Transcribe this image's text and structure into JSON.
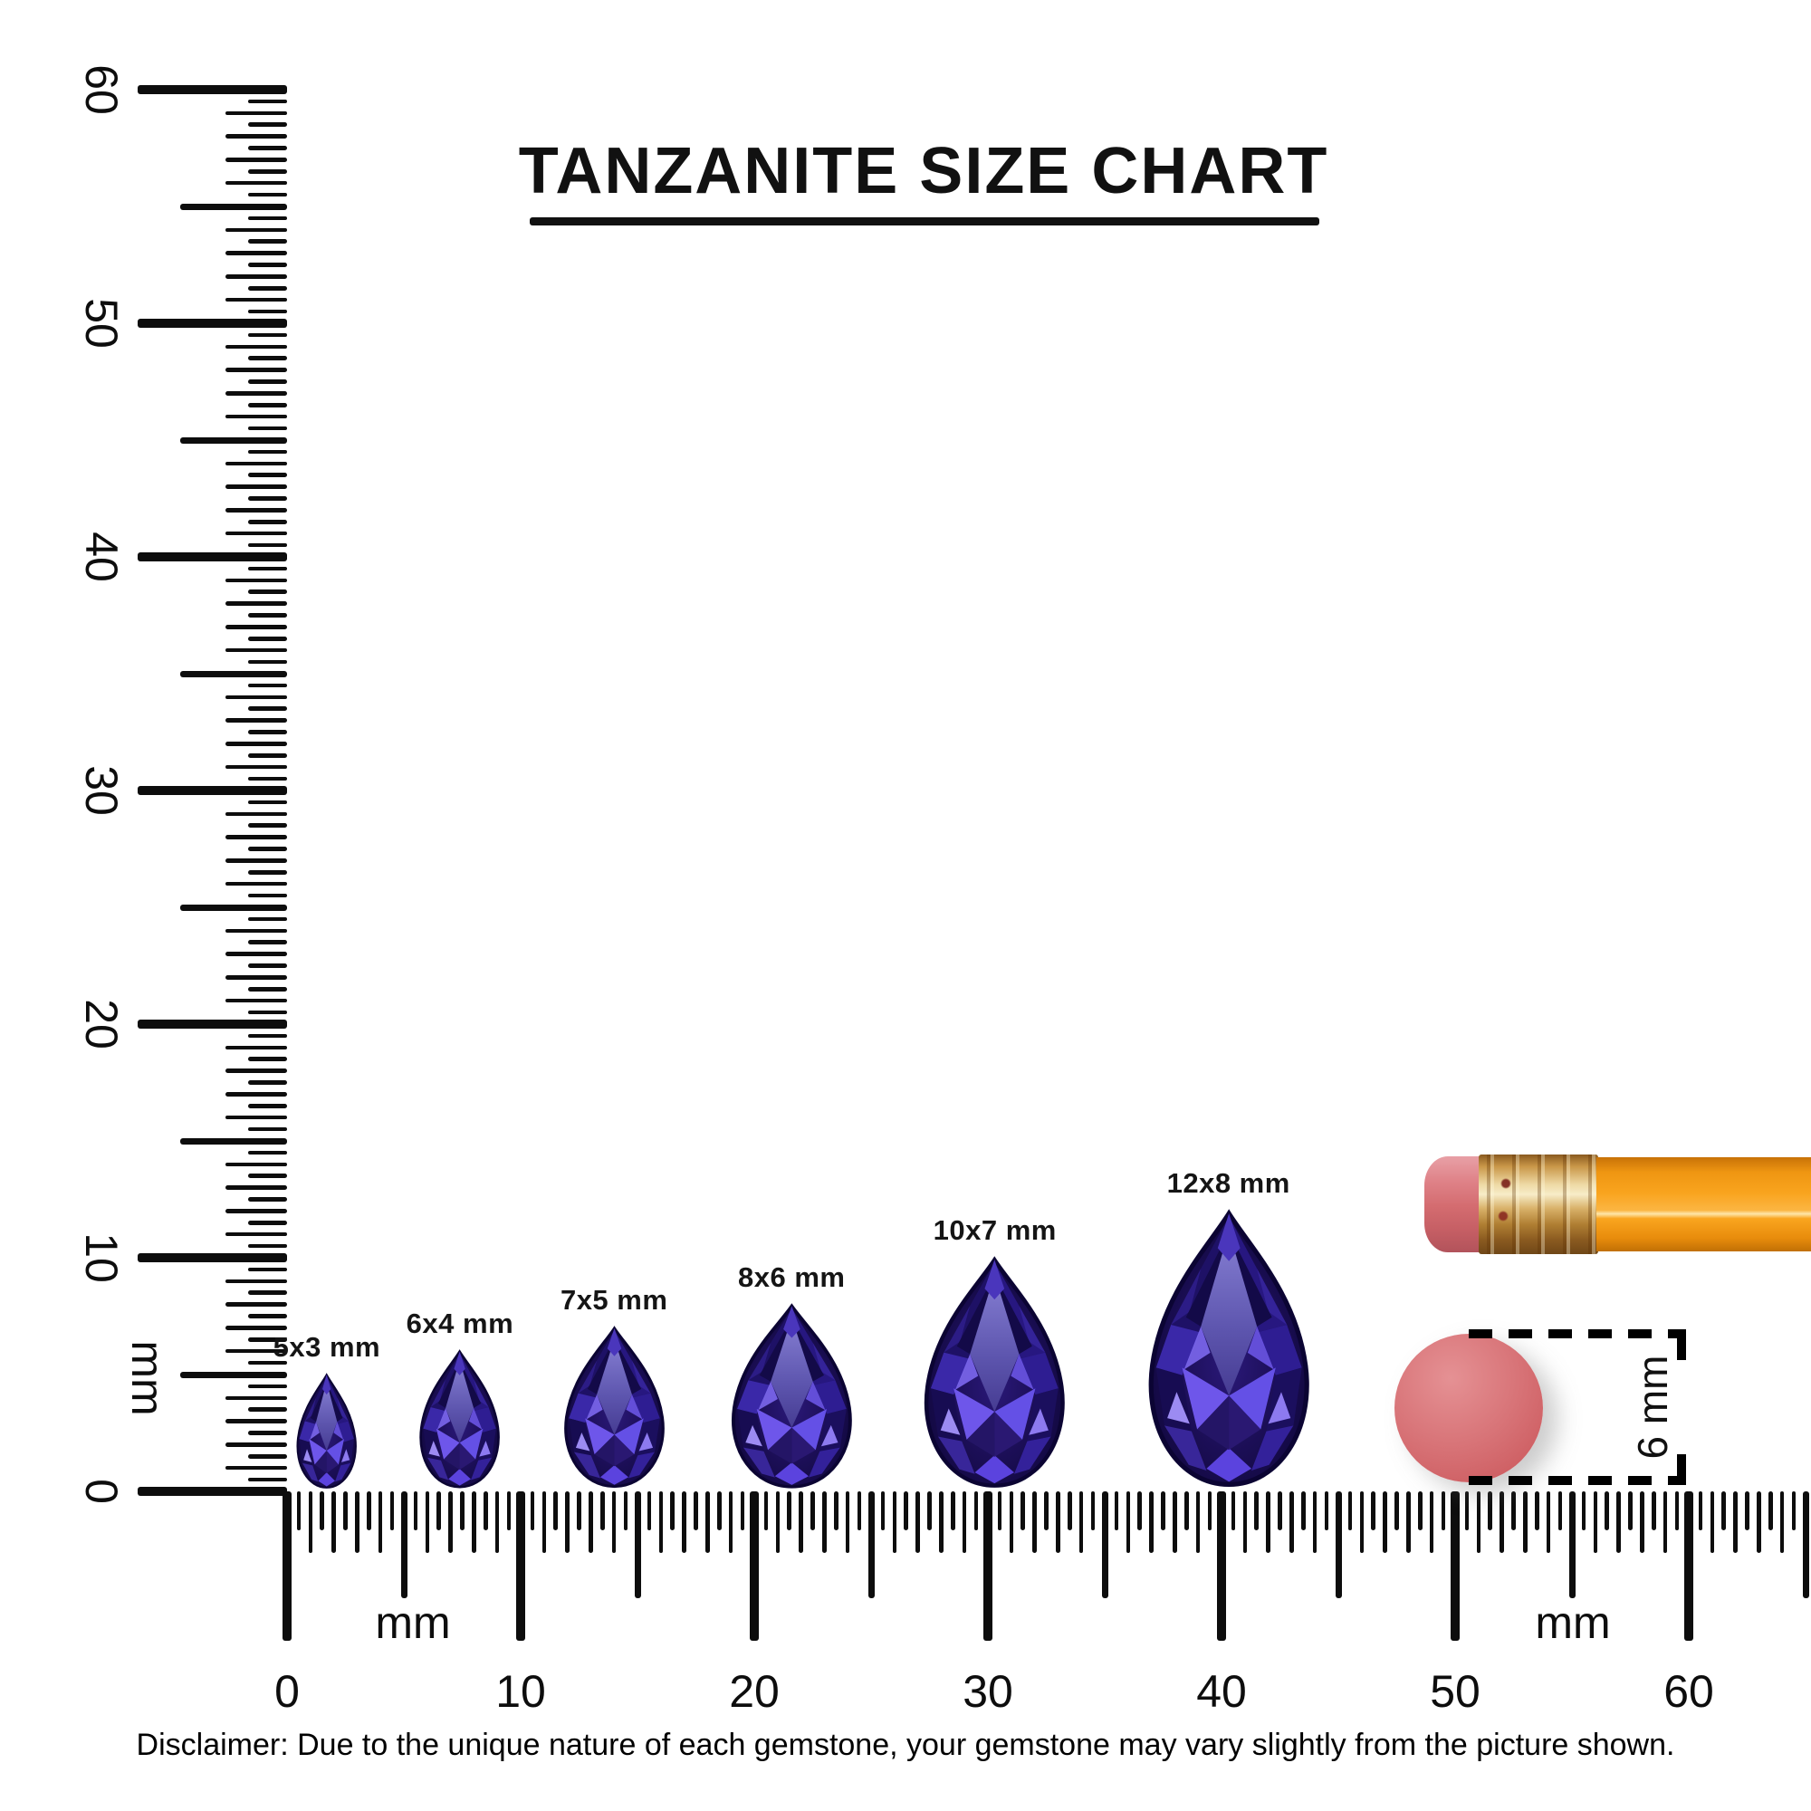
{
  "title": {
    "text": "TANZANITE SIZE CHART"
  },
  "rulers": {
    "unit_label": "mm",
    "vertical": {
      "min_mm": 0,
      "max_mm": 60,
      "labels": [
        "0",
        "10",
        "20",
        "30",
        "40",
        "50",
        "60"
      ]
    },
    "horizontal": {
      "min_mm": 0,
      "max_mm": 65,
      "labels": [
        "0",
        "10",
        "20",
        "30",
        "40",
        "50",
        "60"
      ]
    }
  },
  "gems": [
    {
      "label": "5x3 mm",
      "length_mm": 5,
      "width_mm": 3,
      "center_mm": 1.7
    },
    {
      "label": "6x4 mm",
      "length_mm": 6,
      "width_mm": 4,
      "center_mm": 7.4
    },
    {
      "label": "7x5 mm",
      "length_mm": 7,
      "width_mm": 5,
      "center_mm": 14.0
    },
    {
      "label": "8x6 mm",
      "length_mm": 8,
      "width_mm": 6,
      "center_mm": 21.6
    },
    {
      "label": "10x7 mm",
      "length_mm": 10,
      "width_mm": 7,
      "center_mm": 30.3
    },
    {
      "label": "12x8 mm",
      "length_mm": 12,
      "width_mm": 8,
      "center_mm": 40.3
    }
  ],
  "reference_objects": {
    "pencil": {
      "description": "pencil eraser end"
    },
    "eraser_disc": {
      "diameter_label": "6 mm",
      "diameter_mm": 6
    }
  },
  "disclaimer": {
    "text": "Disclaimer: Due to the unique nature of each gemstone, your gemstone may vary slightly from the picture shown."
  },
  "colors": {
    "ink": "#111111",
    "gem_dark": "#140a45",
    "gem_mid": "#2c1a86",
    "gem_bright": "#5b3fe6",
    "gem_light": "#8d75f4",
    "pencil_orange": "#f9a41e",
    "ferrule_gold": "#d9a959",
    "eraser_pink": "#d4696b"
  }
}
